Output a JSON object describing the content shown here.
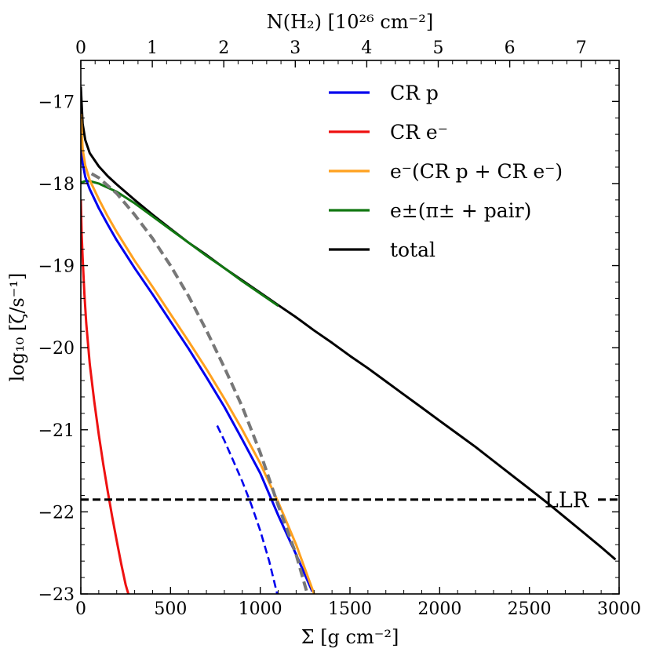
{
  "chart_data": {
    "type": "line",
    "title": "",
    "xlabel": "Σ [g cm⁻²]",
    "ylabel": "log₁₀ [ζ/s⁻¹]",
    "top_xlabel": "N(H₂) [10²⁶ cm⁻²]",
    "xlim": [
      0,
      3000
    ],
    "ylim": [
      -23,
      -16.5
    ],
    "top_xlim": [
      0,
      7.53
    ],
    "x_ticks": [
      0,
      500,
      1000,
      1500,
      2000,
      2500,
      3000
    ],
    "x_tick_labels": [
      "0",
      "500",
      "1000",
      "1500",
      "2000",
      "2500",
      "3000"
    ],
    "y_ticks": [
      -23,
      -22,
      -21,
      -20,
      -19,
      -18,
      -17
    ],
    "y_tick_labels": [
      "−23",
      "−22",
      "−21",
      "−20",
      "−19",
      "−18",
      "−17"
    ],
    "top_ticks": [
      0,
      1,
      2,
      3,
      4,
      5,
      6,
      7
    ],
    "top_tick_labels": [
      "0",
      "1",
      "2",
      "3",
      "4",
      "5",
      "6",
      "7"
    ],
    "grid": false,
    "legend_position": "top-right",
    "legend": [
      {
        "key": "cr_p",
        "label": "CR p",
        "color": "#0000ee"
      },
      {
        "key": "cr_e",
        "label": "CR e⁻",
        "color": "#ee1111"
      },
      {
        "key": "e_sec",
        "label": "e⁻(CR p + CR e⁻)",
        "color": "#ffa11f"
      },
      {
        "key": "pion_pair",
        "label": "e±(π± + pair)",
        "color": "#117711"
      },
      {
        "key": "total",
        "label": "total",
        "color": "#000000"
      }
    ],
    "series": [
      {
        "name": "total",
        "key": "total",
        "color": "#000000",
        "style": "solid",
        "x": [
          0,
          10,
          25,
          50,
          100,
          150,
          200,
          300,
          400,
          500,
          600,
          700,
          800,
          900,
          1000,
          1100,
          1200,
          1300,
          1400,
          1500,
          1600,
          1700,
          1800,
          1900,
          2000,
          2100,
          2200,
          2300,
          2400,
          2500,
          2600,
          2700,
          2800,
          2900,
          2980
        ],
        "y": [
          -16.82,
          -17.27,
          -17.47,
          -17.63,
          -17.79,
          -17.91,
          -18.01,
          -18.2,
          -18.38,
          -18.55,
          -18.72,
          -18.87,
          -19.03,
          -19.18,
          -19.33,
          -19.48,
          -19.63,
          -19.79,
          -19.94,
          -20.1,
          -20.25,
          -20.41,
          -20.57,
          -20.73,
          -20.89,
          -21.05,
          -21.21,
          -21.38,
          -21.55,
          -21.72,
          -21.89,
          -22.07,
          -22.25,
          -22.43,
          -22.58
        ]
      },
      {
        "name": "e±(π± + pair)",
        "key": "pion_pair",
        "color": "#117711",
        "style": "solid",
        "x": [
          0,
          25,
          50,
          100,
          150,
          200,
          300,
          400,
          500,
          600,
          700,
          800,
          900,
          1000,
          1100
        ],
        "y": [
          -17.99,
          -17.97,
          -17.97,
          -18.0,
          -18.05,
          -18.1,
          -18.24,
          -18.4,
          -18.56,
          -18.72,
          -18.88,
          -19.03,
          -19.19,
          -19.34,
          -19.49
        ]
      },
      {
        "name": "CR p",
        "key": "cr_p",
        "color": "#0000ee",
        "style": "solid",
        "x": [
          0,
          10,
          25,
          50,
          100,
          150,
          200,
          300,
          400,
          500,
          600,
          700,
          800,
          900,
          1000,
          1100,
          1200,
          1290
        ],
        "y": [
          -17.35,
          -17.75,
          -17.92,
          -18.07,
          -18.3,
          -18.5,
          -18.69,
          -19.03,
          -19.35,
          -19.68,
          -20.01,
          -20.36,
          -20.72,
          -21.12,
          -21.53,
          -22.04,
          -22.52,
          -22.97
        ]
      },
      {
        "name": "CR p (dashed)",
        "key": "cr_p_dash",
        "color": "#0000ee",
        "style": "dashed",
        "x": [
          760,
          800,
          850,
          900,
          950,
          1000,
          1050,
          1100
        ],
        "y": [
          -20.95,
          -21.13,
          -21.38,
          -21.63,
          -21.91,
          -22.23,
          -22.6,
          -23.05
        ]
      },
      {
        "name": "e⁻(CR p + CR e⁻)",
        "key": "e_sec",
        "color": "#ffa11f",
        "style": "solid",
        "x": [
          0,
          10,
          25,
          50,
          100,
          150,
          200,
          300,
          400,
          500,
          600,
          700,
          800,
          900,
          1000,
          1100,
          1200,
          1300
        ],
        "y": [
          -17.15,
          -17.58,
          -17.78,
          -17.96,
          -18.19,
          -18.4,
          -18.59,
          -18.94,
          -19.26,
          -19.59,
          -19.92,
          -20.26,
          -20.62,
          -21.0,
          -21.41,
          -21.88,
          -22.4,
          -23.0
        ]
      },
      {
        "name": "Gray dashed",
        "key": "gray_dash",
        "color": "#777777",
        "style": "dashed",
        "x": [
          60,
          100,
          200,
          300,
          400,
          500,
          600,
          700,
          800,
          900,
          1000,
          1100,
          1200,
          1260
        ],
        "y": [
          -17.88,
          -17.93,
          -18.12,
          -18.38,
          -18.67,
          -19.0,
          -19.37,
          -19.79,
          -20.24,
          -20.72,
          -21.28,
          -21.92,
          -22.52,
          -22.98
        ]
      },
      {
        "name": "CR e⁻",
        "key": "cr_e",
        "color": "#ee1111",
        "style": "solid",
        "x": [
          0,
          5,
          10,
          20,
          30,
          50,
          75,
          100,
          125,
          150,
          175,
          200,
          225,
          250,
          265
        ],
        "y": [
          -18.2,
          -18.62,
          -18.9,
          -19.35,
          -19.7,
          -20.2,
          -20.66,
          -21.06,
          -21.42,
          -21.75,
          -22.06,
          -22.35,
          -22.63,
          -22.89,
          -23.0
        ]
      }
    ],
    "annotations": [
      {
        "text": "LLR",
        "type": "hline",
        "y": -21.85
      }
    ]
  }
}
